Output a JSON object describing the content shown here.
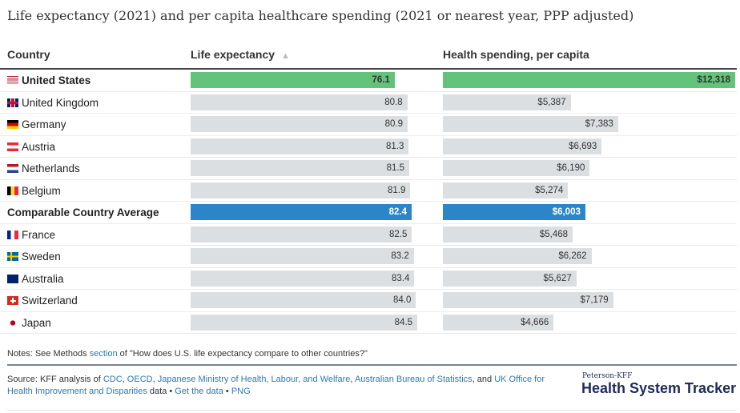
{
  "title": "Life expectancy (2021) and per capita healthcare spending (2021 or nearest year, PPP adjusted)",
  "headers": {
    "country": "Country",
    "life": "Life expectancy",
    "life_sort_icon": "sort-up-triangle",
    "spending": "Health spending, per capita"
  },
  "colors": {
    "us": "#63c37a",
    "average": "#2a86c8",
    "default": "#dcdfe1"
  },
  "chart_data": {
    "type": "bar",
    "categories": [
      "United States",
      "United Kingdom",
      "Germany",
      "Austria",
      "Netherlands",
      "Belgium",
      "Comparable Country Average",
      "France",
      "Sweden",
      "Australia",
      "Switzerland",
      "Japan"
    ],
    "series": [
      {
        "name": "Life expectancy",
        "values": [
          76.1,
          80.8,
          80.9,
          81.3,
          81.5,
          81.9,
          82.4,
          82.5,
          83.2,
          83.4,
          84.0,
          84.5
        ],
        "labels": [
          "76.1",
          "80.8",
          "80.9",
          "81.3",
          "81.5",
          "81.9",
          "82.4",
          "82.5",
          "83.2",
          "83.4",
          "84.0",
          "84.5"
        ]
      },
      {
        "name": "Health spending, per capita",
        "values": [
          12318,
          5387,
          7383,
          6693,
          6190,
          5274,
          6003,
          5468,
          6262,
          5627,
          7179,
          4666
        ],
        "labels": [
          "$12,318",
          "$5,387",
          "$7,383",
          "$6,693",
          "$6,190",
          "$5,274",
          "$6,003",
          "$5,468",
          "$6,262",
          "$5,627",
          "$7,179",
          "$4,666"
        ]
      }
    ]
  },
  "notes": {
    "prefix": "Notes: See Methods ",
    "link": "section",
    "suffix": " of \"How does U.S. life expectancy compare to other countries?\""
  },
  "source": {
    "prefix": "Source: KFF analysis of ",
    "links": [
      "CDC",
      "OECD",
      "Japanese Ministry of Health, Labour, and Welfare",
      "Australian Bureau of Statistics",
      "UK Office for Health Improvement and Disparities"
    ],
    "data_word": " data • ",
    "get_data": "Get the data",
    "png": "PNG"
  },
  "logo": {
    "small": "Peterson-KFF",
    "big": "Health System Tracker"
  }
}
